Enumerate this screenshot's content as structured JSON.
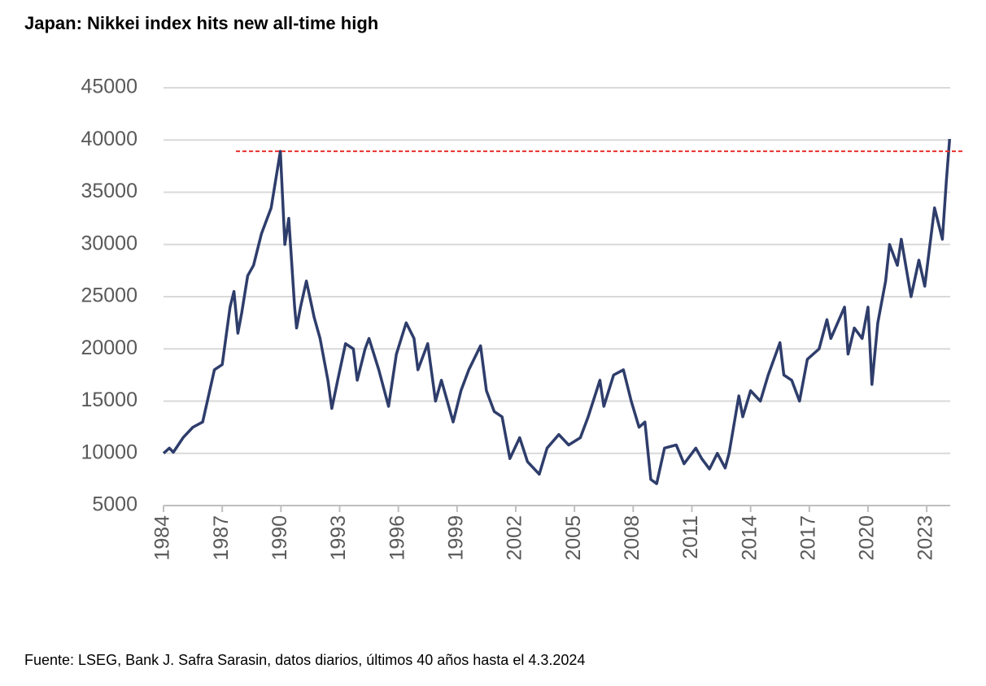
{
  "chart_data": {
    "type": "line",
    "title": "Japan: Nikkei index hits new all-time high",
    "footnote": "Fuente: LSEG, Bank J. Safra Sarasin, datos diarios, últimos 40 años hasta el 4.3.2024",
    "x": [
      1984.0,
      1984.3,
      1984.5,
      1985.0,
      1985.5,
      1986.0,
      1986.3,
      1986.6,
      1987.0,
      1987.4,
      1987.6,
      1987.8,
      1988.0,
      1988.3,
      1988.6,
      1989.0,
      1989.5,
      1989.97,
      1990.2,
      1990.4,
      1990.7,
      1990.8,
      1991.0,
      1991.3,
      1991.7,
      1992.0,
      1992.4,
      1992.6,
      1992.9,
      1993.3,
      1993.7,
      1993.9,
      1994.3,
      1994.5,
      1995.0,
      1995.5,
      1995.9,
      1996.4,
      1996.8,
      1997.0,
      1997.5,
      1997.9,
      1998.2,
      1998.8,
      1999.2,
      1999.6,
      2000.2,
      2000.5,
      2000.9,
      2001.3,
      2001.7,
      2002.2,
      2002.6,
      2003.2,
      2003.6,
      2004.2,
      2004.7,
      2005.3,
      2005.7,
      2006.3,
      2006.5,
      2007.0,
      2007.5,
      2007.9,
      2008.3,
      2008.6,
      2008.9,
      2009.2,
      2009.6,
      2010.2,
      2010.6,
      2011.2,
      2011.5,
      2011.9,
      2012.3,
      2012.7,
      2012.9,
      2013.4,
      2013.6,
      2014.0,
      2014.5,
      2014.9,
      2015.5,
      2015.7,
      2016.1,
      2016.5,
      2016.9,
      2017.5,
      2017.9,
      2018.1,
      2018.8,
      2018.98,
      2019.3,
      2019.7,
      2020.0,
      2020.2,
      2020.5,
      2020.9,
      2021.1,
      2021.5,
      2021.7,
      2022.2,
      2022.6,
      2022.9,
      2023.4,
      2023.8,
      2024.0,
      2024.17
    ],
    "series": [
      {
        "name": "Nikkei",
        "color": "#2e3d6b",
        "values": [
          10000,
          10500,
          10100,
          11500,
          12500,
          13000,
          15500,
          18000,
          18500,
          24000,
          25500,
          21500,
          23500,
          27000,
          28000,
          31000,
          33500,
          38916,
          30000,
          32500,
          24000,
          22000,
          24000,
          26500,
          23000,
          21000,
          17000,
          14300,
          17000,
          20500,
          20000,
          17000,
          20000,
          21000,
          18000,
          14500,
          19500,
          22500,
          21000,
          18000,
          20500,
          15000,
          17000,
          13000,
          16000,
          18000,
          20300,
          16000,
          14000,
          13500,
          9500,
          11500,
          9200,
          8000,
          10500,
          11800,
          10800,
          11500,
          13500,
          17000,
          14500,
          17500,
          18000,
          15000,
          12500,
          13000,
          7500,
          7100,
          10500,
          10800,
          9000,
          10500,
          9500,
          8500,
          10000,
          8600,
          10000,
          15500,
          13500,
          16000,
          15000,
          17500,
          20600,
          17500,
          17000,
          15000,
          19000,
          20000,
          22800,
          21000,
          24000,
          19500,
          22000,
          21000,
          24000,
          16600,
          22500,
          26500,
          30000,
          28000,
          30500,
          25000,
          28500,
          26000,
          33500,
          30500,
          36000,
          40100
        ]
      }
    ],
    "reference_line": {
      "value": 38916,
      "x_start": 1987.7,
      "color": "#e8312f"
    },
    "xlim": [
      1984,
      2024.2
    ],
    "xticks": [
      1984,
      1987,
      1990,
      1993,
      1996,
      1999,
      2002,
      2005,
      2008,
      2011,
      2014,
      2017,
      2020,
      2023
    ],
    "ylim": [
      5000,
      45000
    ],
    "yticks": [
      5000,
      10000,
      15000,
      20000,
      25000,
      30000,
      35000,
      40000,
      45000
    ],
    "grid": true
  }
}
